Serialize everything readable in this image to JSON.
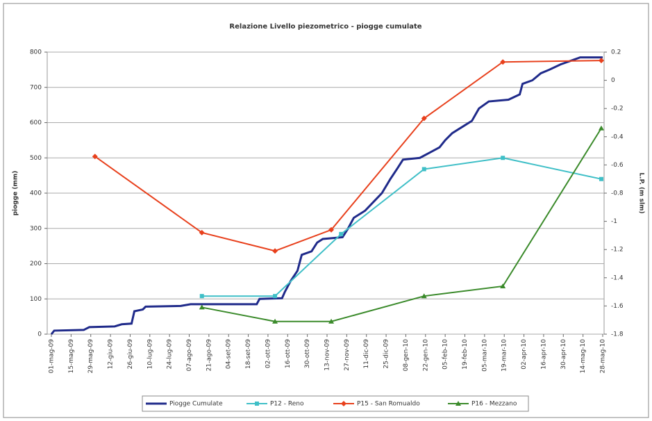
{
  "chart_data": {
    "type": "line",
    "title": "Relazione Livello piezometrico - piogge cumulate",
    "ylabel": "piogge (mm)",
    "y2label": "L.P. (m slm)",
    "xlim": [
      "2009-05-01",
      "2010-05-28"
    ],
    "xticks": [
      {
        "value": "2009-05-01",
        "label": "01-mag-09"
      },
      {
        "value": "2009-05-15",
        "label": "15-mag-09"
      },
      {
        "value": "2009-05-29",
        "label": "29-mag-09"
      },
      {
        "value": "2009-06-12",
        "label": "12-giu-09"
      },
      {
        "value": "2009-06-26",
        "label": "26-giu-09"
      },
      {
        "value": "2009-07-10",
        "label": "10-lug-09"
      },
      {
        "value": "2009-07-24",
        "label": "24-lug-09"
      },
      {
        "value": "2009-08-07",
        "label": "07-ago-09"
      },
      {
        "value": "2009-08-21",
        "label": "21-ago-09"
      },
      {
        "value": "2009-09-04",
        "label": "04-set-09"
      },
      {
        "value": "2009-09-18",
        "label": "18-set-09"
      },
      {
        "value": "2009-10-02",
        "label": "02-ott-09"
      },
      {
        "value": "2009-10-16",
        "label": "16-ott-09"
      },
      {
        "value": "2009-10-30",
        "label": "30-ott-09"
      },
      {
        "value": "2009-11-13",
        "label": "13-nov-09"
      },
      {
        "value": "2009-11-27",
        "label": "27-nov-09"
      },
      {
        "value": "2009-12-11",
        "label": "11-dic-09"
      },
      {
        "value": "2009-12-25",
        "label": "25-dic-09"
      },
      {
        "value": "2010-01-08",
        "label": "08-gen-10"
      },
      {
        "value": "2010-01-22",
        "label": "22-gen-10"
      },
      {
        "value": "2010-02-05",
        "label": "05-feb-10"
      },
      {
        "value": "2010-02-19",
        "label": "19-feb-10"
      },
      {
        "value": "2010-03-05",
        "label": "05-mar-10"
      },
      {
        "value": "2010-03-19",
        "label": "19-mar-10"
      },
      {
        "value": "2010-04-02",
        "label": "02-apr-10"
      },
      {
        "value": "2010-04-16",
        "label": "16-apr-10"
      },
      {
        "value": "2010-04-30",
        "label": "30-apr-10"
      },
      {
        "value": "2010-05-14",
        "label": "14-mag-10"
      },
      {
        "value": "2010-05-28",
        "label": "28-mag-10"
      }
    ],
    "ylim": [
      0,
      800
    ],
    "yticks": [
      0,
      100,
      200,
      300,
      400,
      500,
      600,
      700,
      800
    ],
    "y2lim": [
      -1.8,
      0.2
    ],
    "y2ticks": [
      0.2,
      0,
      -0.2,
      -0.4,
      -0.6,
      -0.8,
      -1,
      -1.2,
      -1.4,
      -1.6,
      -1.8
    ],
    "grid": true,
    "legend": "bottom",
    "series": [
      {
        "name": "Piogge Cumulate",
        "color": "#1f2a8a",
        "marker": "none",
        "x": [
          "2009-05-01",
          "2009-05-03",
          "2009-05-24",
          "2009-05-28",
          "2009-06-15",
          "2009-06-20",
          "2009-06-27",
          "2009-06-29",
          "2009-07-05",
          "2009-07-07",
          "2009-08-01",
          "2009-08-08",
          "2009-09-24",
          "2009-09-26",
          "2009-10-12",
          "2009-10-14",
          "2009-10-18",
          "2009-10-23",
          "2009-10-26",
          "2009-11-02",
          "2009-11-06",
          "2009-11-10",
          "2009-11-24",
          "2009-11-28",
          "2009-12-02",
          "2009-12-10",
          "2009-12-16",
          "2009-12-22",
          "2009-12-28",
          "2010-01-02",
          "2010-01-06",
          "2010-01-18",
          "2010-01-25",
          "2010-02-01",
          "2010-02-05",
          "2010-02-10",
          "2010-02-18",
          "2010-02-24",
          "2010-03-01",
          "2010-03-08",
          "2010-03-22",
          "2010-03-30",
          "2010-04-01",
          "2010-04-08",
          "2010-04-14",
          "2010-04-20",
          "2010-04-28",
          "2010-05-05",
          "2010-05-12",
          "2010-05-28"
        ],
        "values": [
          0,
          10,
          12,
          20,
          22,
          28,
          30,
          65,
          70,
          78,
          80,
          85,
          85,
          100,
          102,
          120,
          150,
          180,
          225,
          235,
          260,
          270,
          275,
          300,
          330,
          350,
          375,
          400,
          440,
          470,
          495,
          500,
          515,
          530,
          550,
          570,
          590,
          605,
          640,
          660,
          665,
          680,
          710,
          720,
          740,
          750,
          765,
          775,
          785,
          785
        ]
      },
      {
        "name": "P12 - Reno",
        "color": "#3fbfc7",
        "marker": "square",
        "axis": "y2",
        "x": [
          "2009-08-16",
          "2009-10-07",
          "2009-11-23",
          "2010-01-21",
          "2010-03-18",
          "2010-05-27"
        ],
        "values": [
          -1.53,
          -1.53,
          -1.09,
          -0.63,
          -0.55,
          -0.7
        ]
      },
      {
        "name": "P15 - San Romualdo",
        "color": "#e8401c",
        "marker": "diamond",
        "axis": "y2",
        "x": [
          "2009-06-01",
          "2009-08-16",
          "2009-10-07",
          "2009-11-16",
          "2010-01-21",
          "2010-03-18",
          "2010-05-27"
        ],
        "values": [
          -0.54,
          -1.08,
          -1.21,
          -1.06,
          -0.27,
          0.13,
          0.14
        ]
      },
      {
        "name": "P16 - Mezzano",
        "color": "#3a8a2a",
        "marker": "triangle",
        "axis": "y2",
        "x": [
          "2009-08-16",
          "2009-10-07",
          "2009-11-16",
          "2010-01-21",
          "2010-03-18",
          "2010-05-27"
        ],
        "values": [
          -1.61,
          -1.71,
          -1.71,
          -1.53,
          -1.46,
          -0.34
        ]
      }
    ]
  }
}
